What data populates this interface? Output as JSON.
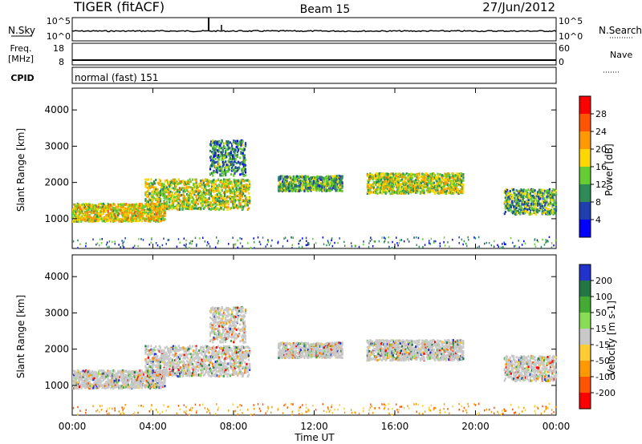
{
  "header": {
    "title": "TIGER (fitACF)",
    "beam": "Beam 15",
    "date": "27/Jun/2012"
  },
  "panels": {
    "nsky_label": "N.Sky",
    "nsearch_label": "N.Search",
    "nsky_ticks": [
      "10^5",
      "10^0"
    ],
    "nsearch_ticks": [
      "10^5",
      "10^0"
    ],
    "freq_label_1": "Freq.",
    "freq_label_2": "[MHz]",
    "freq_ticks": [
      "18",
      "8"
    ],
    "nave_label": "Nave",
    "nave_ticks": [
      "60",
      "0"
    ],
    "cpid_label": "CPID",
    "cpid_value": "normal (fast) 151"
  },
  "colors": {
    "power_scale": [
      "#0000ff",
      "#1f3fae",
      "#2e8b57",
      "#66cc33",
      "#ffd700",
      "#ff9900",
      "#ff5500",
      "#ff0000"
    ],
    "velocity_scale": [
      "#2233cc",
      "#227744",
      "#44aa33",
      "#88dd55",
      "#c8c8c8",
      "#ffcc33",
      "#ff9900",
      "#ff5500",
      "#ff0000"
    ]
  },
  "chart_data": [
    {
      "type": "heatmap",
      "title": "",
      "xlabel": "Time UT",
      "ylabel": "Slant Range [km]",
      "x_ticks": [
        "00:00",
        "04:00",
        "08:00",
        "12:00",
        "16:00",
        "20:00",
        "00:00"
      ],
      "y_ticks": [
        "4000",
        "3000",
        "2000",
        "1000"
      ],
      "ylim": [
        180,
        4600
      ],
      "colorbar": {
        "label": "Power [dB]",
        "ticks": [
          "28",
          "24",
          "20",
          "16",
          "12",
          "8",
          "4"
        ],
        "range": [
          0,
          32
        ]
      },
      "scatter_regions": [
        {
          "t_start": 0.0,
          "t_end": 4.6,
          "range_center": 1200,
          "spread": 350,
          "power": 18
        },
        {
          "t_start": 3.6,
          "t_end": 8.8,
          "range_center": 1700,
          "spread": 600,
          "power": 16
        },
        {
          "t_start": 6.8,
          "t_end": 8.6,
          "range_center": 2700,
          "spread": 700,
          "power": 10
        },
        {
          "t_start": 10.2,
          "t_end": 13.4,
          "range_center": 2000,
          "spread": 300,
          "power": 12
        },
        {
          "t_start": 14.6,
          "t_end": 19.4,
          "range_center": 2000,
          "spread": 400,
          "power": 16
        },
        {
          "t_start": 21.4,
          "t_end": 24.0,
          "range_center": 1500,
          "spread": 500,
          "power": 12
        }
      ]
    },
    {
      "type": "heatmap",
      "title": "",
      "xlabel": "Time UT",
      "ylabel": "Slant Range [km]",
      "x_ticks": [
        "00:00",
        "04:00",
        "08:00",
        "12:00",
        "16:00",
        "20:00",
        "00:00"
      ],
      "y_ticks": [
        "4000",
        "3000",
        "2000",
        "1000"
      ],
      "ylim": [
        180,
        4600
      ],
      "colorbar": {
        "label": "Velocity [m s-1]",
        "ticks": [
          "200",
          "100",
          "50",
          "15",
          "-15",
          "-50",
          "-100",
          "-200"
        ],
        "range": [
          -250,
          250
        ]
      }
    }
  ]
}
